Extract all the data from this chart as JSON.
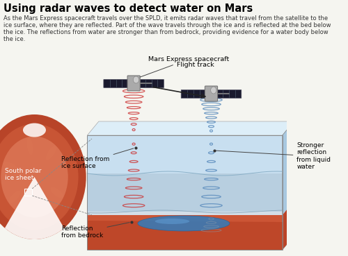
{
  "title": "Using radar waves to detect water on Mars",
  "subtitle": "As the Mars Express spacecraft travels over the SPLD, it emits radar waves that travel from the satellite to the\nice surface, where they are reflected. Part of the wave travels through the ice and is reflected at the bed below\nthe ice. The reflections from water are stronger than from bedrock, providing evidence for a water body below\nthe ice.",
  "title_color": "#000000",
  "subtitle_color": "#333333",
  "bg_color": "#f5f5f0",
  "labels": {
    "mars_express": "Mars Express spacecraft",
    "flight_track": "Flight track",
    "reflection_ice": "Reflection from\nice surface",
    "reflection_bedrock": "Reflection\nfrom bedrock",
    "stronger_reflection": "Stronger\nreflection\nfrom liquid\nwater",
    "south_polar": "South polar\nice sheet"
  },
  "colors": {
    "mars_dark": "#b05030",
    "mars_mid": "#cc6644",
    "mars_light": "#dd8866",
    "ice_white": "#e8f0f8",
    "ice_blue1": "#c8dff0",
    "ice_blue2": "#b0ccdf",
    "sub_layer": "#c0d4e8",
    "water_body": "#4a80b0",
    "bedrock_red": "#cc5535",
    "bedrock_dark": "#aa3318",
    "radar_red": "#cc3333",
    "radar_blue": "#5588bb",
    "radar_gray": "#8899aa",
    "sat_body": "#999999",
    "sat_panel": "#222233",
    "label_line": "#444444"
  }
}
